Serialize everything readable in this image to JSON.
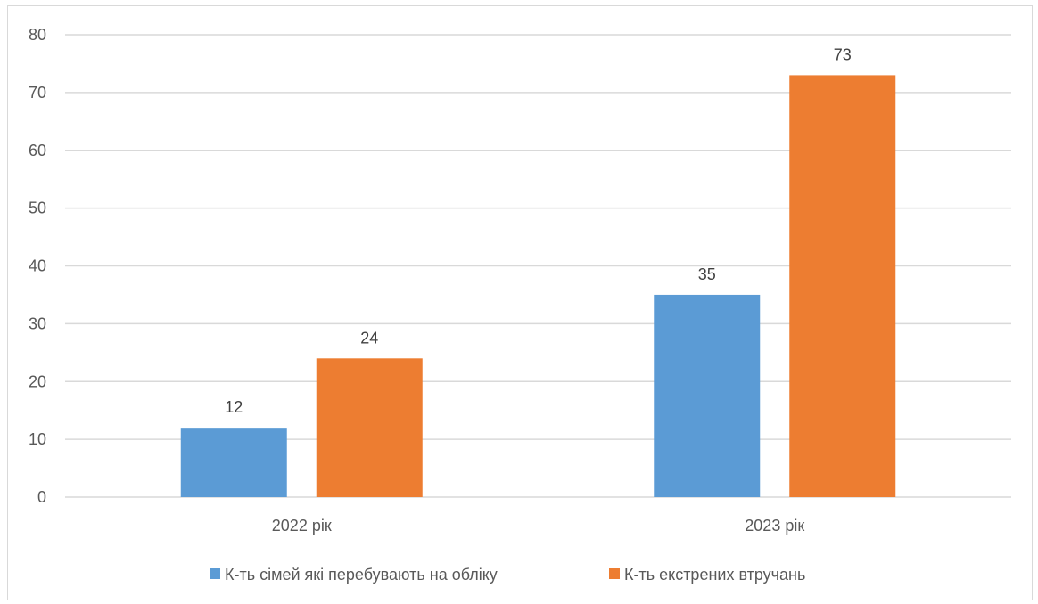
{
  "chart_data": {
    "type": "bar",
    "categories": [
      "2022 рік",
      "2023 рік"
    ],
    "series": [
      {
        "name": "К-ть сімей які перебувають на обліку",
        "values": [
          12,
          35
        ],
        "color": "#5b9bd5"
      },
      {
        "name": "К-ть екстрених втручань",
        "values": [
          24,
          73
        ],
        "color": "#ed7d31"
      }
    ],
    "title": "",
    "xlabel": "",
    "ylabel": "",
    "ylim": [
      0,
      80
    ],
    "yticks": [
      0,
      10,
      20,
      30,
      40,
      50,
      60,
      70,
      80
    ],
    "grid": true,
    "gridColor": "#d9d9d9",
    "data_labels": true,
    "legend_position": "bottom"
  }
}
